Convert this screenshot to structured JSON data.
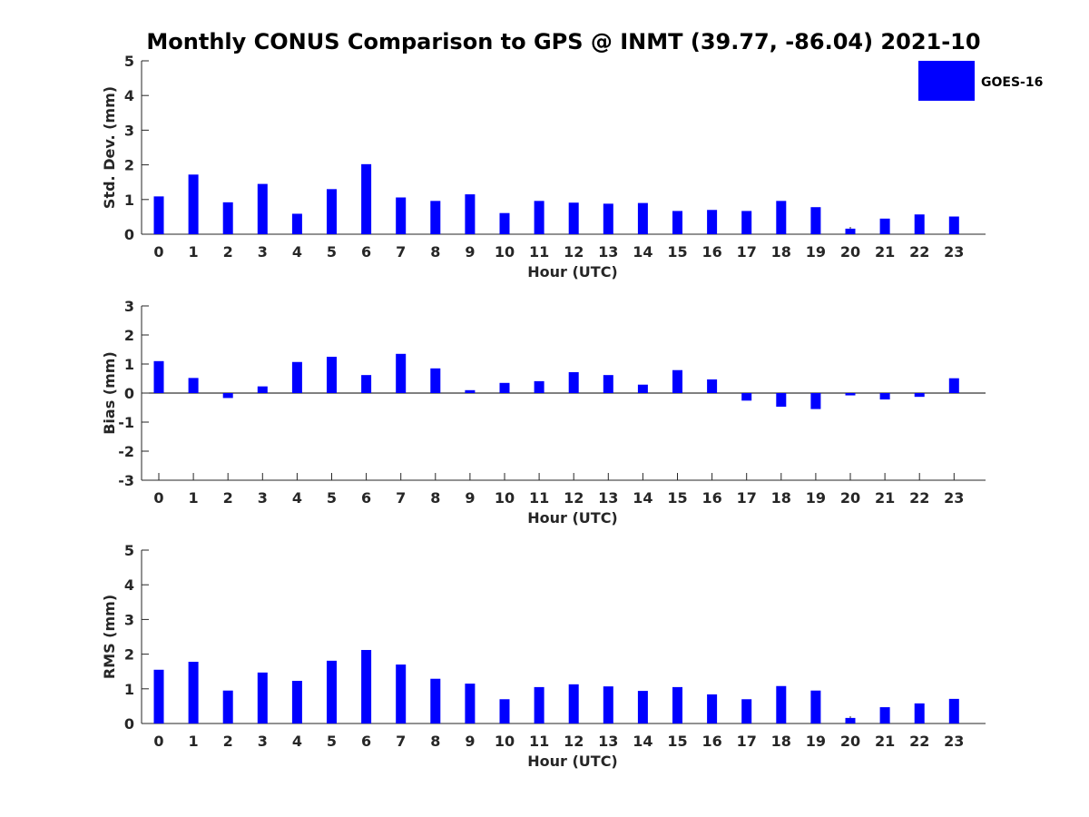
{
  "figure_title": "Monthly CONUS Comparison to GPS @ INMT (39.77, -86.04) 2021-10",
  "legend": {
    "label": "GOES-16",
    "color": "#0000ff"
  },
  "chart_data": [
    {
      "type": "bar",
      "name": "std-dev",
      "ylabel": "Std. Dev. (mm)",
      "xlabel": "Hour (UTC)",
      "ylim": [
        0,
        5
      ],
      "yticks": [
        0,
        1,
        2,
        3,
        4,
        5
      ],
      "categories": [
        "0",
        "1",
        "2",
        "3",
        "4",
        "5",
        "6",
        "7",
        "8",
        "9",
        "10",
        "11",
        "12",
        "13",
        "14",
        "15",
        "16",
        "17",
        "18",
        "19",
        "20",
        "21",
        "22",
        "23"
      ],
      "series": [
        {
          "name": "GOES-16",
          "values": [
            1.09,
            1.72,
            0.92,
            1.45,
            0.59,
            1.3,
            2.02,
            1.06,
            0.96,
            1.15,
            0.61,
            0.96,
            0.91,
            0.88,
            0.9,
            0.67,
            0.7,
            0.67,
            0.96,
            0.78,
            0.16,
            0.45,
            0.57,
            0.51
          ]
        }
      ]
    },
    {
      "type": "bar",
      "name": "bias",
      "ylabel": "Bias (mm)",
      "xlabel": "Hour (UTC)",
      "ylim": [
        -3,
        3
      ],
      "yticks": [
        -3,
        -2,
        -1,
        0,
        1,
        2,
        3
      ],
      "categories": [
        "0",
        "1",
        "2",
        "3",
        "4",
        "5",
        "6",
        "7",
        "8",
        "9",
        "10",
        "11",
        "12",
        "13",
        "14",
        "15",
        "16",
        "17",
        "18",
        "19",
        "20",
        "21",
        "22",
        "23"
      ],
      "series": [
        {
          "name": "GOES-16",
          "values": [
            1.1,
            0.52,
            -0.17,
            0.23,
            1.07,
            1.25,
            0.62,
            1.35,
            0.85,
            0.1,
            0.35,
            0.41,
            0.72,
            0.62,
            0.29,
            0.79,
            0.47,
            -0.26,
            -0.47,
            -0.55,
            -0.08,
            -0.22,
            -0.13,
            0.51
          ]
        }
      ]
    },
    {
      "type": "bar",
      "name": "rms",
      "ylabel": "RMS (mm)",
      "xlabel": "Hour (UTC)",
      "ylim": [
        0,
        5
      ],
      "yticks": [
        0,
        1,
        2,
        3,
        4,
        5
      ],
      "categories": [
        "0",
        "1",
        "2",
        "3",
        "4",
        "5",
        "6",
        "7",
        "8",
        "9",
        "10",
        "11",
        "12",
        "13",
        "14",
        "15",
        "16",
        "17",
        "18",
        "19",
        "20",
        "21",
        "22",
        "23"
      ],
      "series": [
        {
          "name": "GOES-16",
          "values": [
            1.55,
            1.78,
            0.95,
            1.47,
            1.23,
            1.81,
            2.12,
            1.7,
            1.29,
            1.15,
            0.7,
            1.05,
            1.13,
            1.07,
            0.94,
            1.05,
            0.84,
            0.7,
            1.08,
            0.95,
            0.16,
            0.47,
            0.58,
            0.71
          ]
        }
      ]
    }
  ]
}
